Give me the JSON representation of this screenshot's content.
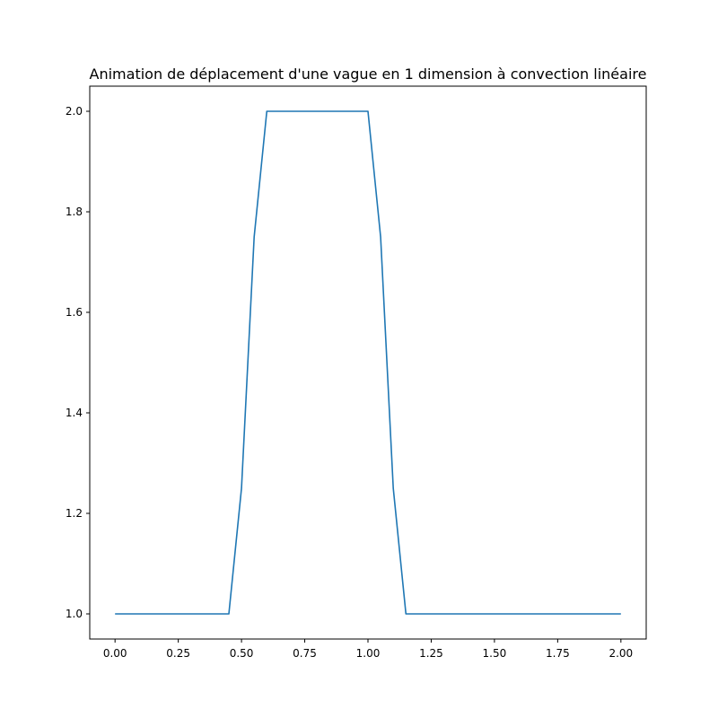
{
  "chart_data": {
    "type": "line",
    "title": "Animation de déplacement d'une vague en 1 dimension à convection linéaire",
    "xlabel": "",
    "ylabel": "",
    "xlim": [
      -0.1,
      2.1
    ],
    "ylim": [
      0.95,
      2.05
    ],
    "xticks": [
      0.0,
      0.25,
      0.5,
      0.75,
      1.0,
      1.25,
      1.5,
      1.75,
      2.0
    ],
    "xtick_labels": [
      "0.00",
      "0.25",
      "0.50",
      "0.75",
      "1.00",
      "1.25",
      "1.50",
      "1.75",
      "2.00"
    ],
    "yticks": [
      1.0,
      1.2,
      1.4,
      1.6,
      1.8,
      2.0
    ],
    "ytick_labels": [
      "1.0",
      "1.2",
      "1.4",
      "1.6",
      "1.8",
      "2.0"
    ],
    "grid": false,
    "legend": "none",
    "series": [
      {
        "color": "#1f77b4",
        "x": [
          0.0,
          0.45,
          0.5,
          0.55,
          0.6,
          1.0,
          1.05,
          1.1,
          1.15,
          2.0
        ],
        "y": [
          1.0,
          1.0,
          1.25,
          1.75,
          2.0,
          2.0,
          1.75,
          1.25,
          1.0,
          1.0
        ]
      }
    ]
  }
}
